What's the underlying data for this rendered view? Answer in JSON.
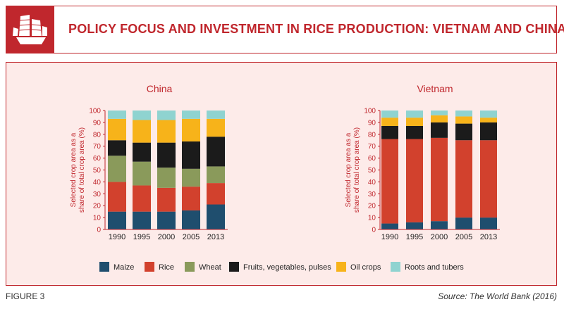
{
  "header": {
    "title": "POLICY FOCUS AND INVESTMENT IN RICE PRODUCTION: VIETNAM AND CHINA",
    "logo_icon": "junk-boat-icon"
  },
  "colors": {
    "brand": "#c0272d",
    "panel_bg": "#fdebe9",
    "Maize": "#1f4e6e",
    "Rice": "#d2412d",
    "Wheat": "#8a9a5b",
    "Fruits, vegetables, pulses": "#1b1b1b",
    "Oil crops": "#f7b31a",
    "Roots and tubers": "#8fd3d0"
  },
  "legend": [
    "Maize",
    "Rice",
    "Wheat",
    "Fruits, vegetables, pulses",
    "Oil crops",
    "Roots and tubers"
  ],
  "footer": {
    "figure_label": "FIGURE 3",
    "source": "Source: The World Bank (2016)"
  },
  "chart_data": [
    {
      "type": "bar",
      "stacked": true,
      "title": "China",
      "ylabel": "Selected crop area as a share of total crop area (%)",
      "xlabel": "",
      "categories": [
        "1990",
        "1995",
        "2000",
        "2005",
        "2013"
      ],
      "ylim": [
        0,
        100
      ],
      "yticks": [
        0,
        10,
        20,
        30,
        40,
        50,
        60,
        70,
        80,
        90,
        100
      ],
      "series": [
        {
          "name": "Maize",
          "values": [
            15,
            15,
            15,
            16,
            21
          ]
        },
        {
          "name": "Rice",
          "values": [
            25,
            22,
            20,
            20,
            18
          ]
        },
        {
          "name": "Wheat",
          "values": [
            22,
            20,
            17,
            15,
            14
          ]
        },
        {
          "name": "Fruits, vegetables, pulses",
          "values": [
            13,
            16,
            21,
            23,
            25
          ]
        },
        {
          "name": "Oil crops",
          "values": [
            18,
            19,
            19,
            19,
            15
          ]
        },
        {
          "name": "Roots and tubers",
          "values": [
            7,
            8,
            8,
            7,
            7
          ]
        }
      ]
    },
    {
      "type": "bar",
      "stacked": true,
      "title": "Vietnam",
      "ylabel": "Selected crop area as a share of total crop area (%)",
      "xlabel": "",
      "categories": [
        "1990",
        "1995",
        "2000",
        "2005",
        "2013"
      ],
      "ylim": [
        0,
        100
      ],
      "yticks": [
        0,
        10,
        20,
        30,
        40,
        50,
        60,
        70,
        80,
        90,
        100
      ],
      "series": [
        {
          "name": "Maize",
          "values": [
            5,
            6,
            7,
            10,
            10
          ]
        },
        {
          "name": "Rice",
          "values": [
            71,
            70,
            70,
            65,
            65
          ]
        },
        {
          "name": "Wheat",
          "values": [
            0,
            0,
            0,
            0,
            0
          ]
        },
        {
          "name": "Fruits, vegetables, pulses",
          "values": [
            11,
            11,
            13,
            14,
            15
          ]
        },
        {
          "name": "Oil crops",
          "values": [
            7,
            7,
            6,
            6,
            4
          ]
        },
        {
          "name": "Roots and tubers",
          "values": [
            6,
            6,
            4,
            5,
            6
          ]
        }
      ]
    }
  ]
}
